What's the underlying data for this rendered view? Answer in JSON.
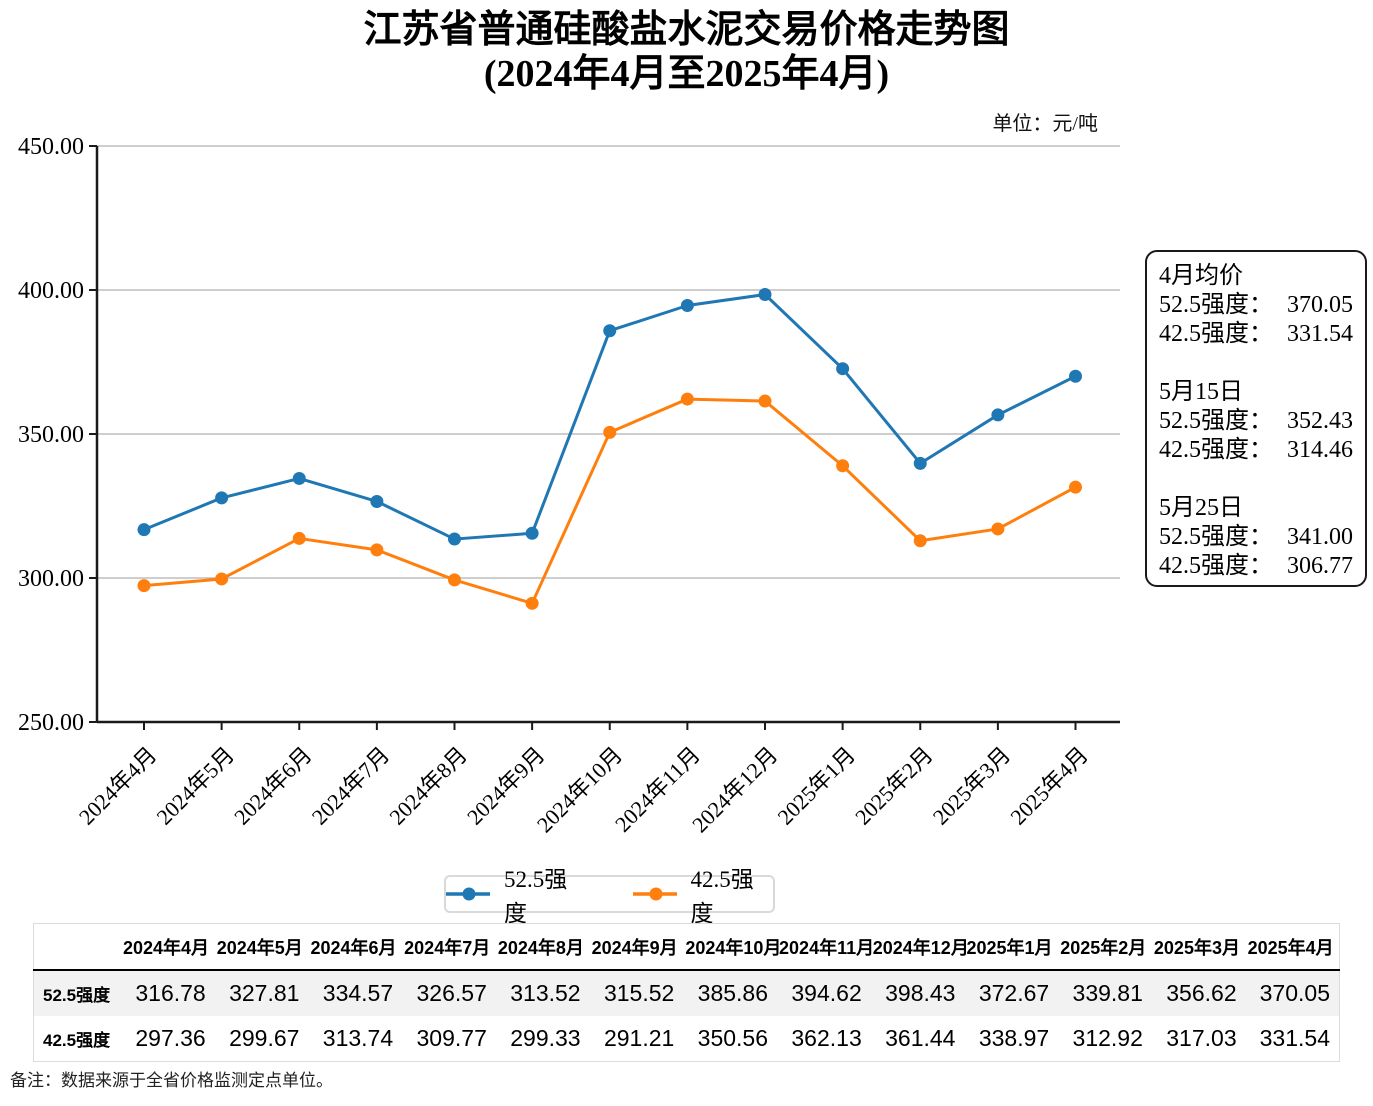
{
  "title": {
    "line1": "江苏省普通硅酸盐水泥交易价格走势图",
    "line2": "(2024年4月至2025年4月)"
  },
  "unit_label": "单位：元/吨",
  "chart_data": {
    "type": "line",
    "categories": [
      "2024年4月",
      "2024年5月",
      "2024年6月",
      "2024年7月",
      "2024年8月",
      "2024年9月",
      "2024年10月",
      "2024年11月",
      "2024年12月",
      "2025年1月",
      "2025年2月",
      "2025年3月",
      "2025年4月"
    ],
    "series": [
      {
        "name": "52.5强度",
        "color": "#1f77b4",
        "values": [
          316.78,
          327.81,
          334.57,
          326.57,
          313.52,
          315.52,
          385.86,
          394.62,
          398.43,
          372.67,
          339.81,
          356.62,
          370.05
        ]
      },
      {
        "name": "42.5强度",
        "color": "#ff7f0e",
        "values": [
          297.36,
          299.67,
          313.74,
          309.77,
          299.33,
          291.21,
          350.56,
          362.13,
          361.44,
          338.97,
          312.92,
          317.03,
          331.54
        ]
      }
    ],
    "ylim": [
      250,
      450
    ],
    "yticks": [
      250,
      300,
      350,
      400,
      450
    ],
    "ytick_format": "0.00",
    "grid": "horizontal-only",
    "gridline_color": "#b0b0b0",
    "axis_color": "#1a1a1a",
    "legend_position": "bottom",
    "xlabel": "",
    "ylabel": ""
  },
  "annotation": {
    "groups": [
      {
        "heading": "4月均价",
        "lines": [
          {
            "label": "52.5强度：",
            "value": "370.05"
          },
          {
            "label": "42.5强度：",
            "value": "331.54"
          }
        ]
      },
      {
        "heading": "5月15日",
        "lines": [
          {
            "label": "52.5强度：",
            "value": "352.43"
          },
          {
            "label": "42.5强度：",
            "value": "314.46"
          }
        ]
      },
      {
        "heading": "5月25日",
        "lines": [
          {
            "label": "52.5强度：",
            "value": "341.00"
          },
          {
            "label": "42.5强度：",
            "value": "306.77"
          }
        ]
      }
    ]
  },
  "table": {
    "columns": [
      "",
      "2024年4月",
      "2024年5月",
      "2024年6月",
      "2024年7月",
      "2024年8月",
      "2024年9月",
      "2024年10月",
      "2024年11月",
      "2024年12月",
      "2025年1月",
      "2025年2月",
      "2025年3月",
      "2025年4月"
    ],
    "rows": [
      {
        "label": "52.5强度",
        "values": [
          "316.78",
          "327.81",
          "334.57",
          "326.57",
          "313.52",
          "315.52",
          "385.86",
          "394.62",
          "398.43",
          "372.67",
          "339.81",
          "356.62",
          "370.05"
        ]
      },
      {
        "label": "42.5强度",
        "values": [
          "297.36",
          "299.67",
          "313.74",
          "309.77",
          "299.33",
          "291.21",
          "350.56",
          "362.13",
          "361.44",
          "338.97",
          "312.92",
          "317.03",
          "331.54"
        ]
      }
    ]
  },
  "footnote": "备注：数据来源于全省价格监测定点单位。"
}
